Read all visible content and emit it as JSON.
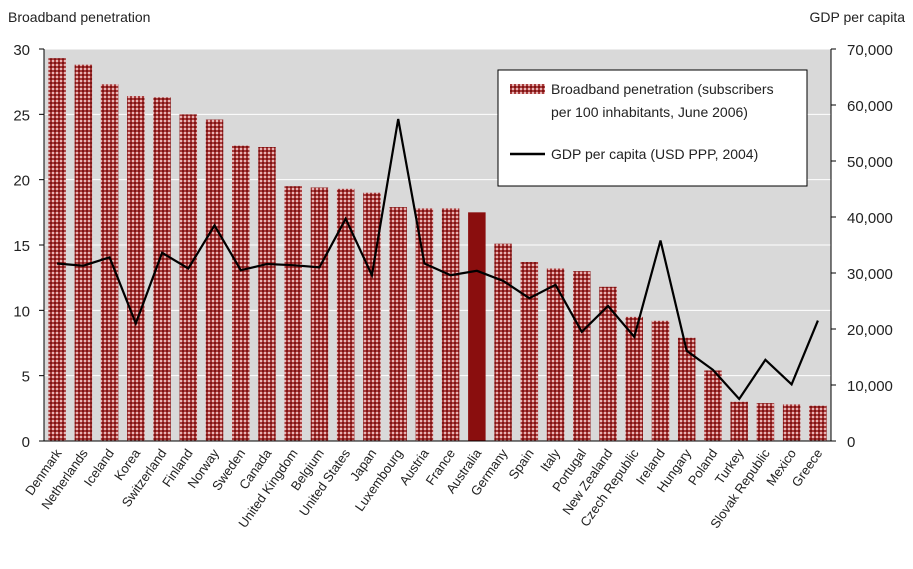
{
  "chart_data": {
    "type": "bar",
    "left_axis_title": "Broadband penetration",
    "right_axis_title": "GDP per capita",
    "categories": [
      "Denmark",
      "Netherlands",
      "Iceland",
      "Korea",
      "Switzerland",
      "Finland",
      "Norway",
      "Sweden",
      "Canada",
      "United Kingdom",
      "Belgium",
      "United States",
      "Japan",
      "Luxembourg",
      "Austria",
      "France",
      "Australia",
      "Germany",
      "Spain",
      "Italy",
      "Portugal",
      "New Zealand",
      "Czech Republic",
      "Ireland",
      "Hungary",
      "Poland",
      "Turkey",
      "Slovak Republic",
      "Mexico",
      "Greece"
    ],
    "highlight_category": "Australia",
    "series": [
      {
        "name": "Broadband penetration (subscribers per 100 inhabitants, June 2006)",
        "legend_lines": [
          "Broadband penetration (subscribers",
          "per 100 inhabitants, June 2006)"
        ],
        "type": "bar",
        "axis": "left",
        "values": [
          29.3,
          28.8,
          27.3,
          26.4,
          26.3,
          25.0,
          24.6,
          22.6,
          22.5,
          19.5,
          19.4,
          19.3,
          19.0,
          17.9,
          17.8,
          17.8,
          17.5,
          15.1,
          13.7,
          13.2,
          13.0,
          11.8,
          9.5,
          9.2,
          7.9,
          5.4,
          3.0,
          2.9,
          2.8,
          2.7
        ]
      },
      {
        "name": "GDP per capita (USD PPP, 2004)",
        "legend_lines": [
          "GDP per capita (USD PPP, 2004)"
        ],
        "type": "line",
        "axis": "right",
        "values": [
          31700,
          31300,
          32800,
          21000,
          33600,
          30800,
          38500,
          30500,
          31600,
          31400,
          31000,
          39700,
          29600,
          57500,
          31700,
          29600,
          30400,
          28600,
          25500,
          27900,
          19500,
          24100,
          18600,
          35800,
          16100,
          12700,
          7500,
          14500,
          10100,
          21500
        ]
      }
    ],
    "left_axis": {
      "min": 0,
      "max": 30,
      "ticks": [
        0,
        5,
        10,
        15,
        20,
        25,
        30
      ]
    },
    "right_axis": {
      "min": 0,
      "max": 70000,
      "ticks": [
        0,
        10000,
        20000,
        30000,
        40000,
        50000,
        60000,
        70000
      ],
      "tick_labels": [
        "0",
        "10,000",
        "20,000",
        "30,000",
        "40,000",
        "50,000",
        "60,000",
        "70,000"
      ]
    },
    "grid": true,
    "legend_position": "top-right",
    "colors": {
      "bar": "#9b1c1c",
      "bar_highlight": "#8a0e0e",
      "line": "#000000",
      "plot_bg": "#d9d9d9",
      "grid": "#ffffff"
    }
  }
}
